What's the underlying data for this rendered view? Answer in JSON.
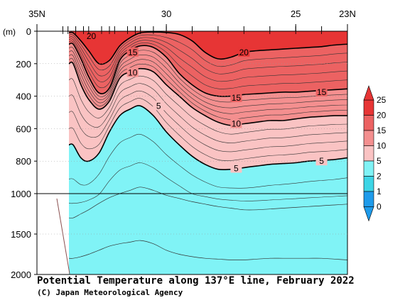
{
  "chart_data": {
    "type": "heatmap",
    "title": "Potential Temperature along 137°E line, February 2022",
    "credit": "(C) Japan Meteorological Agency",
    "y_unit_label": "(m)",
    "x_tick_labels": [
      "35N",
      "30",
      "25",
      "23N"
    ],
    "x_ticks_lat": [
      35,
      30,
      25,
      23
    ],
    "station_marks_lat": [
      34.0,
      33.8,
      33.5,
      33.2,
      33.0,
      32.5,
      32.2,
      32.0,
      31.5,
      31.2,
      31.0,
      30.5,
      30.0,
      29.0,
      28.0,
      27.0,
      26.0,
      25.0,
      24.0,
      23.0
    ],
    "y_tick_labels": [
      "0",
      "200",
      "400",
      "600",
      "800",
      "1000",
      "1500",
      "2000"
    ],
    "y_ticks_depth": [
      0,
      200,
      400,
      600,
      800,
      1000,
      1500,
      2000
    ],
    "x_range_lat": [
      35,
      23
    ],
    "y_range_depth_m": [
      0,
      2000
    ],
    "y_scale_break_depth_m": 1000,
    "colorbar_labels": [
      "25",
      "20",
      "15",
      "10",
      "5",
      "2",
      "1",
      "0"
    ],
    "colorbar_levels": [
      0,
      1,
      2,
      5,
      10,
      15,
      20,
      25
    ],
    "colorbar_colors": [
      "#1E9BEB",
      "#3DD5E6",
      "#80F3F6",
      "#FAC3C3",
      "#F48F8F",
      "#EC6262",
      "#E73535"
    ],
    "x_lat": [
      33.6,
      33.3,
      33.0,
      32.6,
      32.2,
      31.8,
      31.4,
      31.0,
      30.5,
      30.0,
      29.5,
      29.0,
      28.5,
      28.0,
      27.5,
      27.0,
      26.5,
      26.0,
      25.5,
      25.0,
      24.5,
      24.0,
      23.5,
      23.0
    ],
    "isotherms_depth_m": [
      {
        "temp_c": 20,
        "depth_m": [
          10,
          60,
          120,
          200,
          180,
          90,
          40,
          10,
          5,
          8,
          20,
          60,
          130,
          170,
          160,
          130,
          120,
          115,
          110,
          105,
          100,
          95,
          85,
          80
        ]
      },
      {
        "temp_c": 15,
        "depth_m": [
          80,
          170,
          280,
          380,
          350,
          180,
          120,
          90,
          100,
          160,
          260,
          330,
          380,
          400,
          400,
          390,
          385,
          380,
          375,
          375,
          370,
          365,
          360,
          355
        ]
      },
      {
        "temp_c": 10,
        "depth_m": [
          200,
          330,
          420,
          480,
          430,
          290,
          250,
          230,
          250,
          330,
          400,
          470,
          520,
          560,
          580,
          570,
          560,
          550,
          550,
          540,
          530,
          525,
          520,
          520
        ]
      },
      {
        "temp_c": 5,
        "depth_m": [
          700,
          780,
          800,
          750,
          620,
          520,
          480,
          460,
          520,
          620,
          700,
          770,
          820,
          850,
          850,
          840,
          830,
          820,
          815,
          810,
          800,
          795,
          790,
          780
        ]
      }
    ],
    "isotherm_labels": [
      {
        "temp_c": 20,
        "text": "20",
        "lat": 32.9,
        "depth_m": 30
      },
      {
        "temp_c": 20,
        "text": "20",
        "lat": 27.0,
        "depth_m": 130
      },
      {
        "temp_c": 15,
        "text": "15",
        "lat": 31.3,
        "depth_m": 130
      },
      {
        "temp_c": 15,
        "text": "15",
        "lat": 27.3,
        "depth_m": 410
      },
      {
        "temp_c": 15,
        "text": "15",
        "lat": 24.0,
        "depth_m": 375
      },
      {
        "temp_c": 10,
        "text": "10",
        "lat": 31.3,
        "depth_m": 255
      },
      {
        "temp_c": 10,
        "text": "10",
        "lat": 27.3,
        "depth_m": 570
      },
      {
        "temp_c": 5,
        "text": "5",
        "lat": 30.3,
        "depth_m": 460
      },
      {
        "temp_c": 5,
        "text": "5",
        "lat": 27.3,
        "depth_m": 845
      },
      {
        "temp_c": 5,
        "text": "5",
        "lat": 24.0,
        "depth_m": 800
      }
    ],
    "deep_isotherms_depth_m": [
      {
        "temp_c": 2,
        "depth_m": [
          1300,
          1250,
          1200,
          1120,
          1050,
          1000,
          980,
          960,
          980,
          1020,
          1060,
          1100,
          1130,
          1160,
          1180,
          1200,
          1200,
          1190,
          1180,
          1170,
          1160,
          1150,
          1140,
          1130
        ]
      },
      {
        "temp_c": 1.5,
        "depth_m": [
          1800,
          1780,
          1750,
          1700,
          1650,
          1620,
          1600,
          1580,
          1620,
          1700,
          1750,
          1780,
          1800,
          1810,
          1820,
          1820,
          1810,
          1800,
          1800,
          1800,
          1800,
          1800,
          1810,
          1820
        ]
      }
    ]
  }
}
